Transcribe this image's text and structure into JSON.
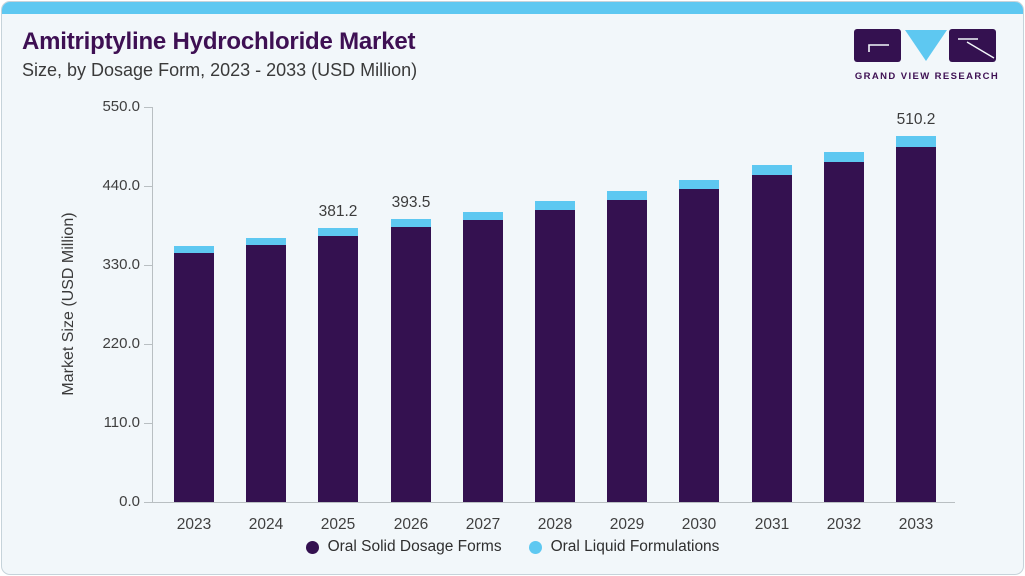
{
  "header": {
    "title": "Amitriptyline Hydrochloride Market",
    "subtitle": "Size, by Dosage Form, 2023 - 2033 (USD Million)"
  },
  "logo": {
    "name": "GRAND VIEW RESEARCH"
  },
  "colors": {
    "accent_blue": "#5EC8F1",
    "brand_purple": "#341150",
    "title_purple": "#3E1053",
    "card_bg": "#F2F7FA",
    "axis_gray": "#B9BFC2",
    "text_dark": "#3C3C3C"
  },
  "chart_data": {
    "type": "bar",
    "stacked": true,
    "title": "Amitriptyline Hydrochloride Market Size, by Dosage Form, 2023 - 2033 (USD Million)",
    "categories": [
      "2023",
      "2024",
      "2025",
      "2026",
      "2027",
      "2028",
      "2029",
      "2030",
      "2031",
      "2032",
      "2033"
    ],
    "series": [
      {
        "name": "Oral Solid Dosage Forms",
        "color": "#341150",
        "values": [
          346.8,
          357.5,
          370.6,
          382.5,
          393.2,
          406.7,
          420.7,
          436.5,
          455.3,
          473.0,
          494.7
        ]
      },
      {
        "name": "Oral Liquid Formulations",
        "color": "#5EC8F1",
        "values": [
          9.7,
          10.1,
          10.6,
          11.0,
          11.4,
          11.9,
          12.4,
          13.0,
          13.7,
          14.5,
          15.5
        ]
      }
    ],
    "totals": [
      356.5,
      367.6,
      381.2,
      393.5,
      404.6,
      418.6,
      433.1,
      449.5,
      469.0,
      487.5,
      510.2
    ],
    "bar_labels": [
      "",
      "",
      "381.2",
      "393.5",
      "",
      "",
      "",
      "",
      "",
      "",
      "510.2"
    ],
    "ylabel": "Market Size (USD Million)",
    "ytick_labels": [
      "550.0",
      "440.0",
      "330.0",
      "220.0",
      "110.0",
      "0.0"
    ],
    "ylim": [
      0,
      550
    ],
    "grid": false,
    "legend_position": "bottom"
  },
  "legend": {
    "items": [
      {
        "label": "Oral Solid Dosage Forms",
        "color": "#341150"
      },
      {
        "label": "Oral Liquid Formulations",
        "color": "#5EC8F1"
      }
    ]
  }
}
